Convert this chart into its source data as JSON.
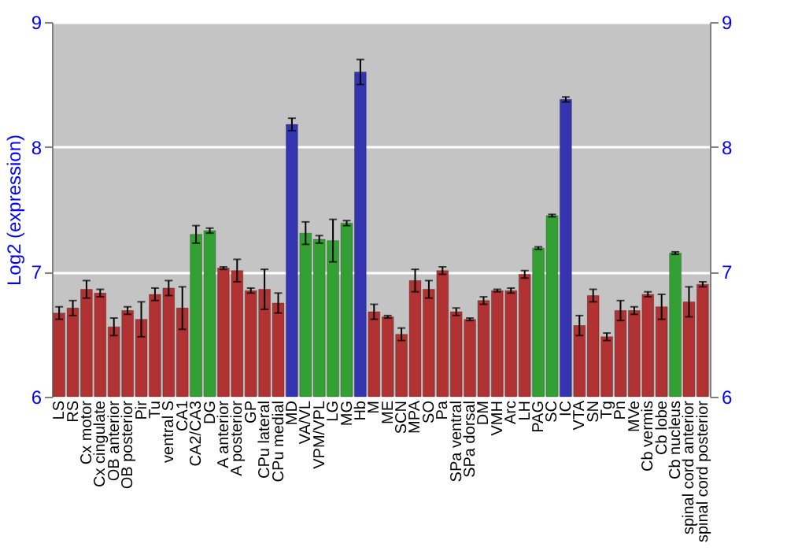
{
  "chart_data": {
    "type": "bar",
    "ylabel": "Log2 (expression)",
    "categories": [
      "LS",
      "RS",
      "Cx motor",
      "Cx cingulate",
      "OB anterior",
      "OB posterior",
      "Pir",
      "Tu",
      "ventral S",
      "CA1",
      "CA2/CA3",
      "DG",
      "A anterior",
      "A posterior",
      "GP",
      "CPu lateral",
      "CPu medial",
      "MD",
      "VA/VL",
      "VPM/VPL",
      "LG",
      "MG",
      "Hb",
      "M",
      "ME",
      "SCN",
      "MPA",
      "SO",
      "Pa",
      "SPa ventral",
      "SPa dorsal",
      "DM",
      "VMH",
      "Arc",
      "LH",
      "PAG",
      "SC",
      "IC",
      "VTA",
      "SN",
      "Tg",
      "Pn",
      "MVe",
      "Cb vermis",
      "Cb lobe",
      "Cb nucleus",
      "spinal cord anterior",
      "spinal cord posterior"
    ],
    "values": [
      6.67,
      6.71,
      6.86,
      6.83,
      6.56,
      6.69,
      6.62,
      6.82,
      6.87,
      6.71,
      7.3,
      7.33,
      7.03,
      7.01,
      6.85,
      6.86,
      6.75,
      8.18,
      7.31,
      7.26,
      7.25,
      7.39,
      8.6,
      6.68,
      6.64,
      6.5,
      6.93,
      6.86,
      7.01,
      6.68,
      6.62,
      6.77,
      6.85,
      6.85,
      6.98,
      7.19,
      7.45,
      8.38,
      6.57,
      6.81,
      6.48,
      6.69,
      6.69,
      6.82,
      6.72,
      7.15,
      6.76,
      6.9
    ],
    "errors": [
      0.05,
      0.06,
      0.07,
      0.03,
      0.07,
      0.03,
      0.14,
      0.05,
      0.06,
      0.17,
      0.07,
      0.02,
      0.01,
      0.09,
      0.02,
      0.16,
      0.08,
      0.05,
      0.09,
      0.03,
      0.17,
      0.02,
      0.1,
      0.06,
      0.01,
      0.05,
      0.09,
      0.07,
      0.03,
      0.03,
      0.01,
      0.03,
      0.01,
      0.02,
      0.03,
      0.01,
      0.01,
      0.02,
      0.08,
      0.05,
      0.03,
      0.08,
      0.03,
      0.02,
      0.1,
      0.01,
      0.12,
      0.02
    ],
    "colors": [
      "#b03232",
      "#b03232",
      "#b03232",
      "#b03232",
      "#b03232",
      "#b03232",
      "#b03232",
      "#b03232",
      "#b03232",
      "#b03232",
      "#33a033",
      "#33a033",
      "#b03232",
      "#b03232",
      "#b03232",
      "#b03232",
      "#b03232",
      "#3434b0",
      "#33a033",
      "#33a033",
      "#33a033",
      "#33a033",
      "#3434b0",
      "#b03232",
      "#b03232",
      "#b03232",
      "#b03232",
      "#b03232",
      "#b03232",
      "#b03232",
      "#b03232",
      "#b03232",
      "#b03232",
      "#b03232",
      "#b03232",
      "#33a033",
      "#33a033",
      "#3434b0",
      "#b03232",
      "#b03232",
      "#b03232",
      "#b03232",
      "#b03232",
      "#b03232",
      "#b03232",
      "#33a033",
      "#b03232",
      "#b03232"
    ],
    "ylim": [
      6,
      9
    ],
    "yticks": [
      6,
      7,
      8,
      9
    ],
    "y2lim": [
      6,
      9
    ],
    "y2ticks": [
      6,
      7,
      8,
      9
    ],
    "grid": "y"
  }
}
